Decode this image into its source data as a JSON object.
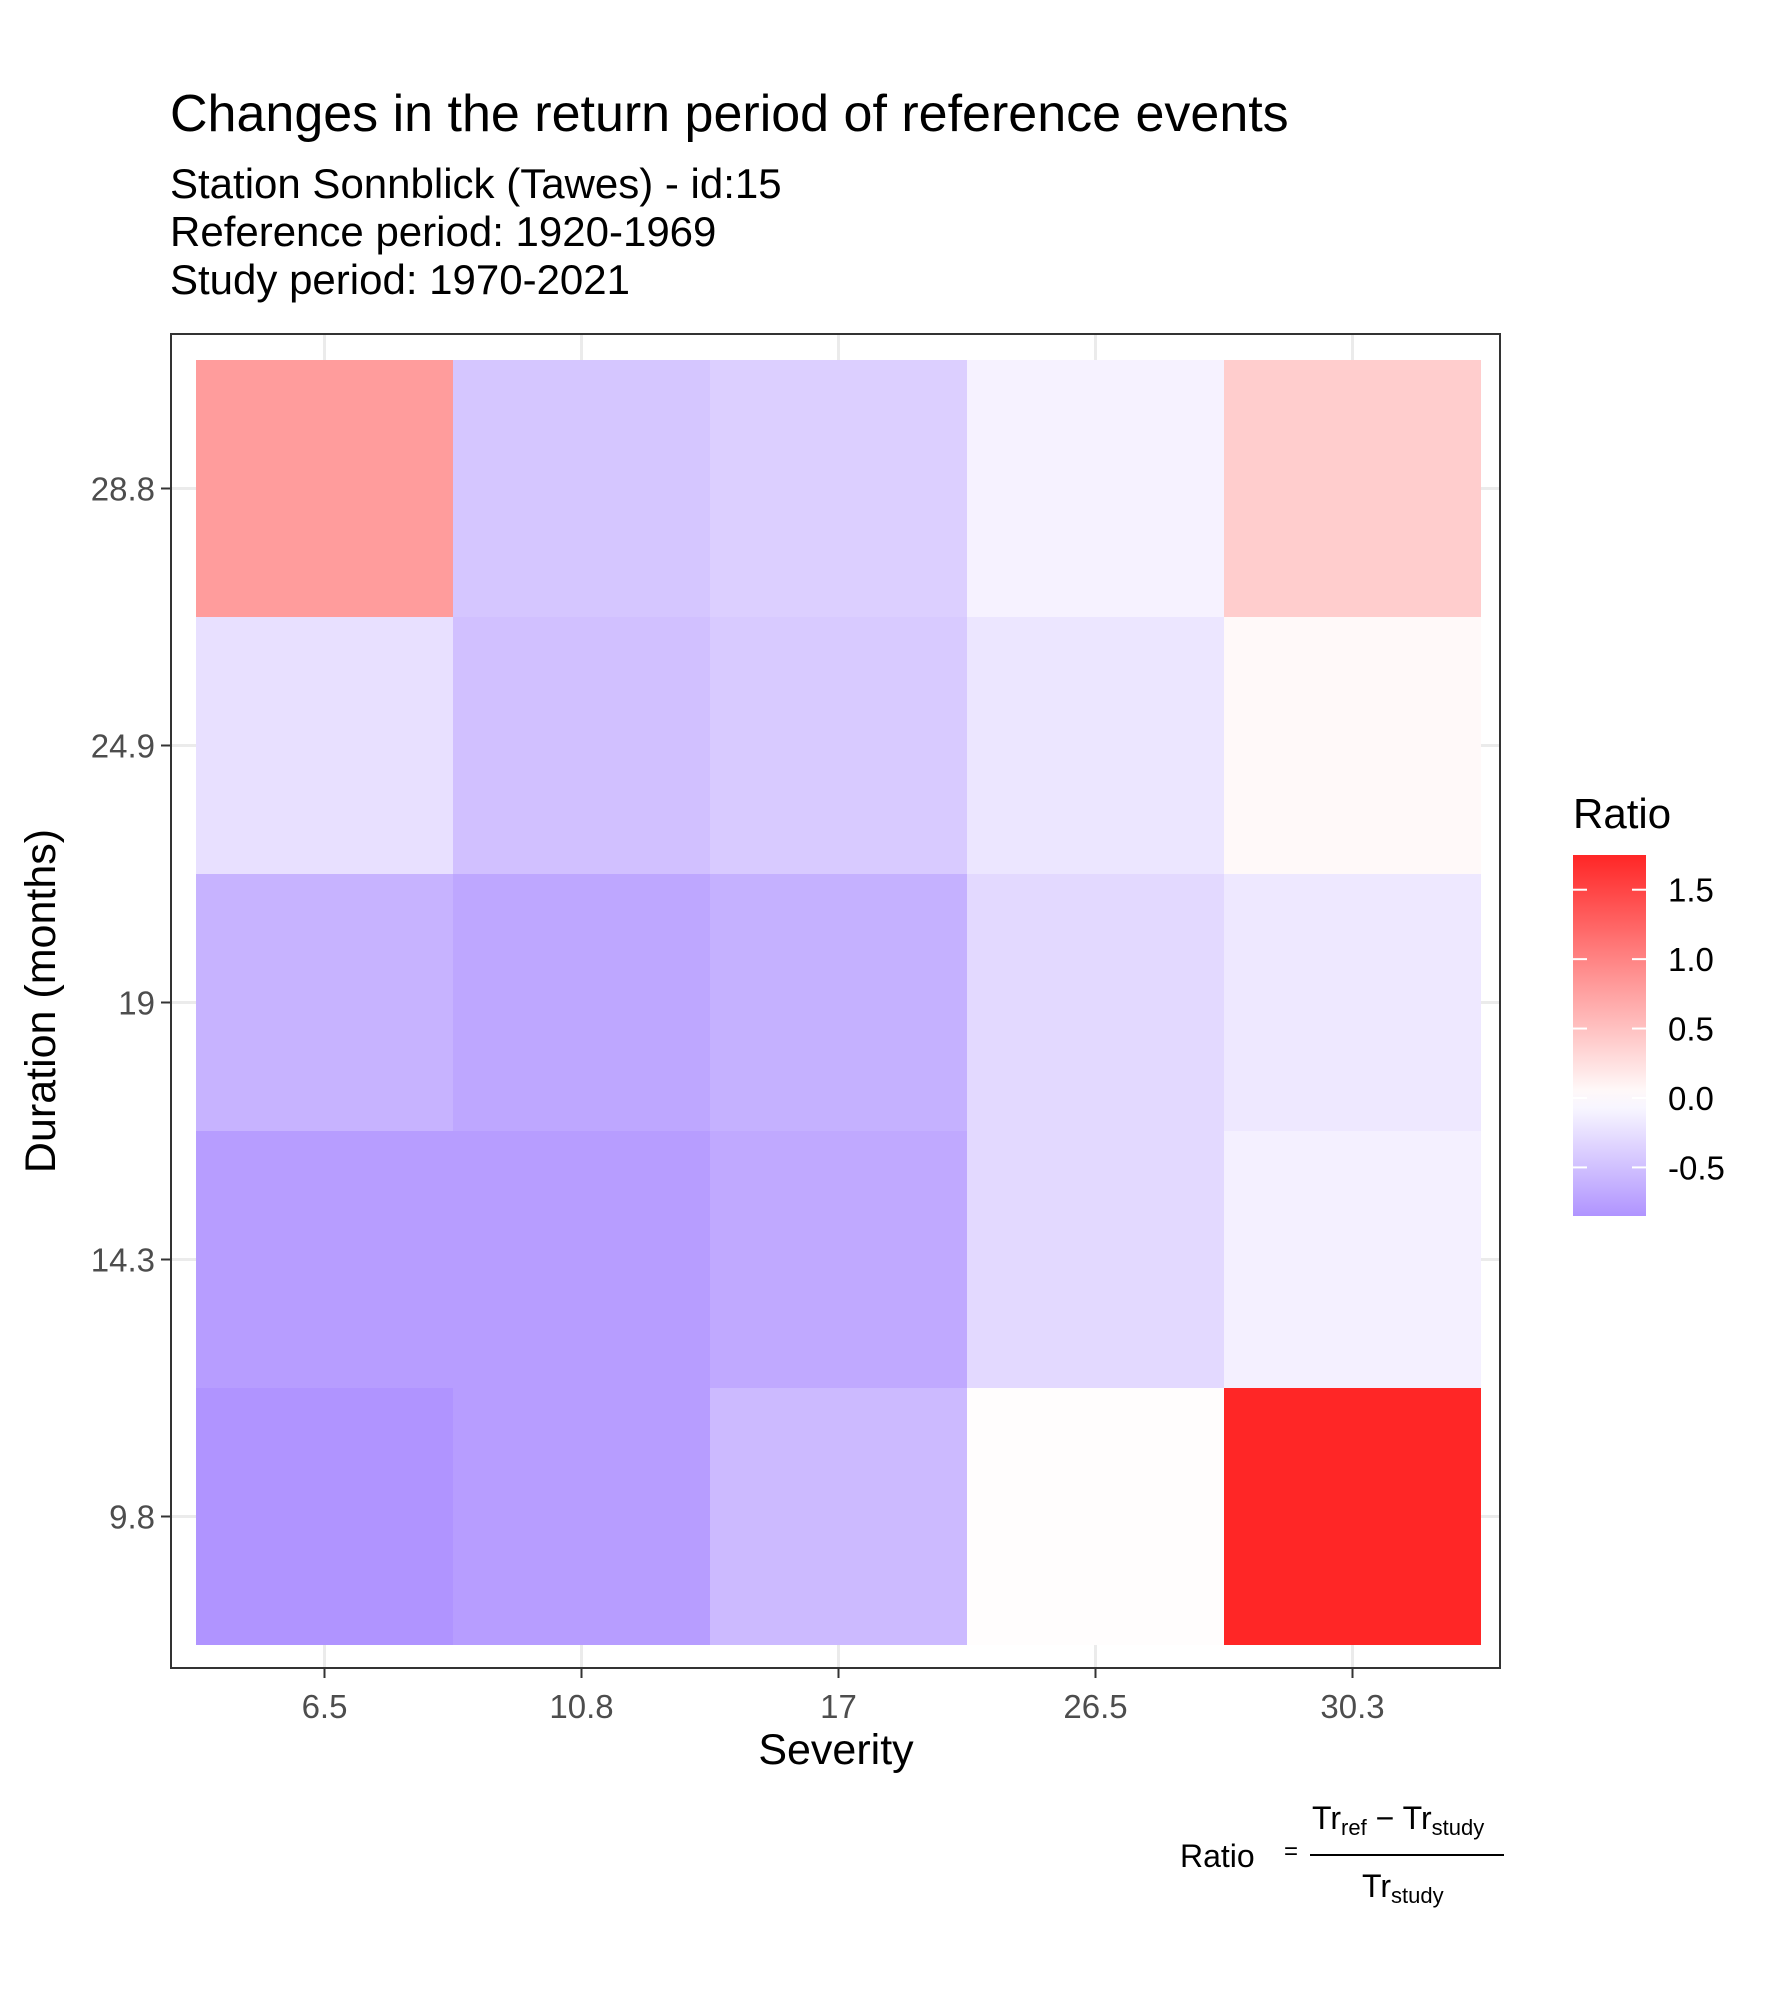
{
  "chart_data": {
    "type": "heatmap",
    "title": "Changes in the return period of reference events",
    "subtitle_lines": [
      "Station Sonnblick (Tawes) - id:15",
      "Reference period: 1920-1969",
      "Study period: 1970-2021"
    ],
    "xlabel": "Severity",
    "ylabel": "Duration (months)",
    "x_categories": [
      "6.5",
      "10.8",
      "17",
      "26.5",
      "30.3"
    ],
    "y_categories": [
      "9.8",
      "14.3",
      "19",
      "24.9",
      "28.8"
    ],
    "values": [
      [
        -0.85,
        -0.78,
        -0.55,
        0.02,
        1.75
      ],
      [
        -0.78,
        -0.78,
        -0.68,
        -0.3,
        -0.12
      ],
      [
        -0.6,
        -0.7,
        -0.62,
        -0.3,
        -0.18
      ],
      [
        -0.25,
        -0.5,
        -0.42,
        -0.2,
        0.05
      ],
      [
        0.8,
        -0.45,
        -0.38,
        -0.1,
        0.4
      ]
    ],
    "legend": {
      "title": "Ratio",
      "ticks": [
        "1.5",
        "1.0",
        "0.5",
        "0.0",
        "-0.5"
      ],
      "tick_values": [
        1.5,
        1.0,
        0.5,
        0.0,
        -0.5
      ],
      "range": [
        -0.85,
        1.75
      ],
      "placement": "right",
      "colors": {
        "low": "#b094ff",
        "mid": "#ffffff",
        "high": "#ff2626"
      }
    },
    "grid": true,
    "formula": {
      "lhs": "Ratio",
      "equals": "=",
      "num_a": "Tr",
      "num_a_sub": "ref",
      "minus": "−",
      "num_b": "Tr",
      "num_b_sub": "study",
      "den": "Tr",
      "den_sub": "study"
    }
  }
}
